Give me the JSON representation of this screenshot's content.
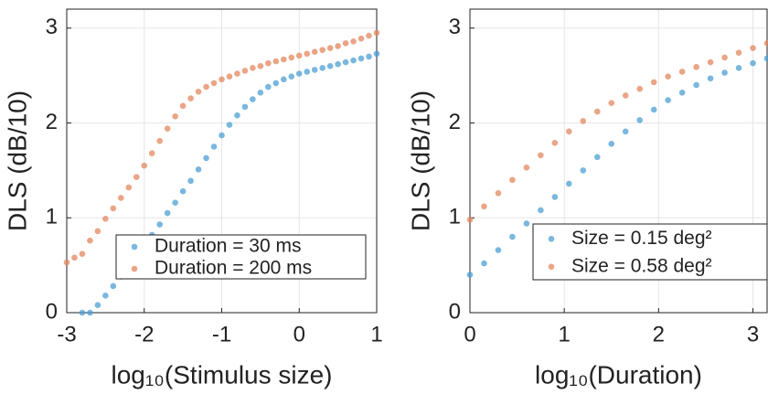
{
  "chart_data": [
    {
      "type": "scatter",
      "ylabel": "DLS (dB/10)",
      "xlabel": "log₁₀(Stimulus size)",
      "xlim": [
        -3,
        1
      ],
      "ylim": [
        0,
        3.2
      ],
      "xticks": [
        -3,
        -2,
        -1,
        0,
        1
      ],
      "yticks": [
        0,
        1,
        2,
        3
      ],
      "grid": true,
      "legend": "lower-right",
      "x": [
        -3,
        -2.9,
        -2.8,
        -2.7,
        -2.6,
        -2.5,
        -2.4,
        -2.3,
        -2.2,
        -2.1,
        -2.0,
        -1.9,
        -1.8,
        -1.7,
        -1.6,
        -1.5,
        -1.4,
        -1.3,
        -1.2,
        -1.1,
        -1.0,
        -0.9,
        -0.8,
        -0.7,
        -0.6,
        -0.5,
        -0.4,
        -0.3,
        -0.2,
        -0.1,
        0,
        0.1,
        0.2,
        0.3,
        0.4,
        0.5,
        0.6,
        0.7,
        0.8,
        0.9,
        1.0
      ],
      "series": [
        {
          "name": "Duration = 30 ms",
          "color": "#4e9fd3",
          "values": [
            null,
            null,
            0,
            0,
            0.08,
            0.18,
            0.28,
            0.38,
            0.49,
            0.6,
            0.71,
            0.82,
            0.93,
            1.05,
            1.16,
            1.28,
            1.39,
            1.51,
            1.63,
            1.75,
            1.87,
            1.98,
            2.08,
            2.17,
            2.25,
            2.32,
            2.38,
            2.42,
            2.46,
            2.49,
            2.52,
            2.54,
            2.56,
            2.58,
            2.6,
            2.62,
            2.64,
            2.66,
            2.68,
            2.7,
            2.73
          ]
        },
        {
          "name": "Duration = 200 ms",
          "color": "#e3875e",
          "values": [
            0.53,
            0.58,
            0.62,
            0.76,
            0.86,
            0.99,
            1.1,
            1.21,
            1.32,
            1.43,
            1.55,
            1.68,
            1.81,
            1.94,
            2.07,
            2.18,
            2.26,
            2.33,
            2.38,
            2.42,
            2.46,
            2.49,
            2.52,
            2.55,
            2.58,
            2.6,
            2.63,
            2.65,
            2.67,
            2.69,
            2.71,
            2.73,
            2.75,
            2.77,
            2.79,
            2.81,
            2.84,
            2.86,
            2.89,
            2.92,
            2.95
          ]
        }
      ]
    },
    {
      "type": "scatter",
      "ylabel": "DLS (dB/10)",
      "xlabel": "log₁₀(Duration)",
      "xlim": [
        0,
        3.15
      ],
      "ylim": [
        0,
        3.2
      ],
      "xticks": [
        0,
        1,
        2,
        3
      ],
      "yticks": [
        0,
        1,
        2,
        3
      ],
      "grid": true,
      "legend": "lower-right",
      "x": [
        0,
        0.15,
        0.3,
        0.45,
        0.6,
        0.75,
        0.9,
        1.05,
        1.2,
        1.35,
        1.5,
        1.65,
        1.8,
        1.95,
        2.1,
        2.25,
        2.4,
        2.55,
        2.7,
        2.85,
        3.0,
        3.15
      ],
      "series": [
        {
          "name": "Size = 0.15 deg²",
          "color": "#4e9fd3",
          "values": [
            0.4,
            0.52,
            0.66,
            0.8,
            0.94,
            1.08,
            1.22,
            1.36,
            1.5,
            1.64,
            1.78,
            1.91,
            2.03,
            2.14,
            2.24,
            2.32,
            2.4,
            2.47,
            2.53,
            2.58,
            2.63,
            2.68
          ]
        },
        {
          "name": "Size = 0.58 deg²",
          "color": "#e3875e",
          "values": [
            0.98,
            1.12,
            1.26,
            1.4,
            1.53,
            1.66,
            1.79,
            1.91,
            2.02,
            2.12,
            2.21,
            2.29,
            2.36,
            2.43,
            2.49,
            2.54,
            2.59,
            2.64,
            2.69,
            2.74,
            2.79,
            2.84
          ]
        }
      ]
    }
  ]
}
